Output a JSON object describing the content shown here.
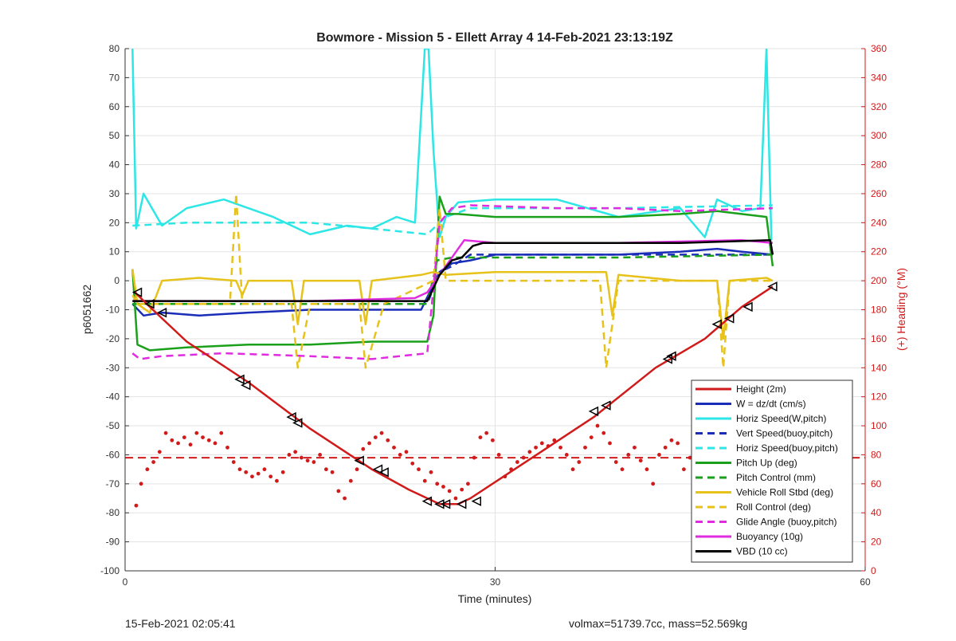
{
  "footer": {
    "left": "15-Feb-2021 02:05:41",
    "right": "volmax=51739.7cc, mass=52.569kg"
  },
  "chart_data": {
    "type": "line",
    "title": "Bowmore - Mission 5 - Ellett Array 4 14-Feb-2021 23:13:19Z",
    "xlabel": "Time (minutes)",
    "ylabel": "p6051662",
    "y2label": "(+) Heading (°M)",
    "xlim": [
      0,
      60
    ],
    "ylim": [
      -100,
      80
    ],
    "y2lim": [
      0,
      360
    ],
    "xticks": [
      0,
      30,
      60
    ],
    "yticks": [
      -100,
      -90,
      -80,
      -70,
      -60,
      -50,
      -40,
      -30,
      -20,
      -10,
      0,
      10,
      20,
      30,
      40,
      50,
      60,
      70,
      80
    ],
    "y2ticks": [
      0,
      20,
      40,
      60,
      80,
      100,
      120,
      140,
      160,
      180,
      200,
      220,
      240,
      260,
      280,
      300,
      320,
      340,
      360
    ],
    "grid": true,
    "legend_position": "bottom-right",
    "colors": {
      "red": "#d11a1a",
      "blue": "#1a2db8",
      "cyan": "#2de6e6",
      "green": "#1aa01a",
      "yellow": "#e6c21a",
      "magenta": "#e02be0",
      "black": "#000000",
      "y2axis": "#d11a1a"
    },
    "series": [
      {
        "name": "Height (2m)",
        "color": "red",
        "style": "solid",
        "x": [
          0.8,
          2,
          5,
          10,
          15,
          20,
          23,
          25.5,
          27,
          28,
          33,
          38,
          43,
          47,
          50,
          52.5
        ],
        "y": [
          -4,
          -9,
          -21,
          -35,
          -51,
          -65,
          -72,
          -77,
          -77,
          -75,
          -61,
          -47,
          -30,
          -20,
          -9,
          -2
        ]
      },
      {
        "name": "W = dz/dt (cm/s)",
        "color": "blue",
        "style": "solid",
        "x": [
          0.6,
          1.5,
          3,
          6,
          10,
          15,
          20,
          24,
          25.5,
          26.5,
          28,
          30,
          35,
          40,
          45,
          48,
          50,
          52.5
        ],
        "y": [
          -8,
          -12,
          -11,
          -12,
          -11,
          -10,
          -10,
          -10,
          3,
          6,
          7,
          9,
          9,
          9,
          10,
          11,
          10,
          9
        ]
      },
      {
        "name": "Horiz Speed(W,pitch)",
        "color": "cyan",
        "style": "solid",
        "x": [
          0.6,
          0.9,
          1.5,
          3,
          5,
          8,
          12,
          15,
          18,
          20,
          22,
          23.5,
          24.3,
          24.6,
          25,
          25.5,
          26,
          27,
          30,
          35,
          40,
          45,
          47,
          48,
          50,
          51.5,
          52,
          52.4
        ],
        "y": [
          80,
          18,
          30,
          19,
          25,
          28,
          22,
          16,
          19,
          18,
          22,
          20,
          80,
          80,
          45,
          15,
          22,
          27,
          28,
          28,
          22,
          25,
          15,
          28,
          24,
          25,
          80,
          14
        ]
      },
      {
        "name": "Vert Speed(buoy,pitch)",
        "color": "blue",
        "style": "dashed",
        "x": [
          0.6,
          24.5,
          25.5,
          26.5,
          28,
          40,
          52.5
        ],
        "y": [
          -8,
          -8,
          3,
          5,
          9,
          9,
          9
        ]
      },
      {
        "name": "Horiz Speed(buoy,pitch)",
        "color": "cyan",
        "style": "dashed",
        "x": [
          0.6,
          5,
          15,
          20,
          24.5,
          26,
          28,
          40,
          52.5
        ],
        "y": [
          19,
          20,
          20,
          18,
          16,
          22,
          25,
          25,
          26
        ]
      },
      {
        "name": "Pitch Up (deg)",
        "color": "green",
        "style": "solid",
        "x": [
          0.6,
          1,
          2,
          5,
          10,
          15,
          20,
          24.5,
          25,
          25.5,
          26,
          27,
          30,
          35,
          40,
          45,
          48,
          52,
          52.5
        ],
        "y": [
          4,
          -22,
          -24,
          -23,
          -22,
          -22,
          -21,
          -21,
          -12,
          29,
          23,
          23,
          22,
          22,
          22,
          23,
          24,
          22,
          5
        ]
      },
      {
        "name": "Pitch Control (mm)",
        "color": "green",
        "style": "dashed",
        "x": [
          0.6,
          24.5,
          25.3,
          26.5,
          40,
          52.5
        ],
        "y": [
          -8,
          -8,
          7,
          8,
          8,
          9
        ]
      },
      {
        "name": "Vehicle Roll Stbd (deg)",
        "color": "yellow",
        "style": "solid",
        "x": [
          0.6,
          1,
          2,
          3,
          6,
          9,
          9.5,
          10,
          13.5,
          14,
          14.5,
          19,
          19.5,
          20,
          24,
          25,
          26,
          30,
          35,
          39,
          39.5,
          40,
          45,
          48,
          48.5,
          49,
          52,
          52.5
        ],
        "y": [
          4,
          -8,
          -11,
          0,
          1,
          0,
          -5,
          0,
          0,
          -15,
          0,
          0,
          -15,
          0,
          2,
          3,
          2,
          3,
          3,
          3,
          -12,
          2,
          0,
          0,
          -20,
          0,
          1,
          0
        ]
      },
      {
        "name": "Roll Control (deg)",
        "color": "yellow",
        "style": "dashed",
        "x": [
          0.6,
          1,
          2,
          8.5,
          9,
          9.5,
          10,
          13.5,
          14,
          15,
          19,
          19.5,
          21,
          25,
          25.5,
          26,
          27,
          30,
          38.5,
          39,
          40,
          48,
          48.5,
          49,
          52.5
        ],
        "y": [
          -5,
          -8,
          -8,
          -8,
          30,
          -8,
          -8,
          -8,
          -30,
          -8,
          -8,
          -30,
          -8,
          0,
          25,
          0,
          0,
          0,
          0,
          -30,
          0,
          0,
          -30,
          0,
          0
        ]
      },
      {
        "name": "Glide Angle (buoy,pitch)",
        "color": "magenta",
        "style": "dashed",
        "x": [
          0.6,
          1.2,
          3,
          8,
          15,
          20,
          24.5,
          25.5,
          26.5,
          28,
          35,
          40,
          45,
          52.5
        ],
        "y": [
          -25,
          -27,
          -26,
          -25,
          -26,
          -27,
          -25,
          20,
          25,
          26,
          25,
          25,
          24,
          25
        ]
      },
      {
        "name": "Buoyancy (10g)",
        "color": "magenta",
        "style": "solid",
        "x": [
          0.6,
          5,
          15,
          23.5,
          24.5,
          25.5,
          27.5,
          30,
          40,
          50,
          52.5
        ],
        "y": [
          -7,
          -7,
          -7,
          -6,
          -4,
          2,
          14,
          13,
          13,
          14,
          13
        ]
      },
      {
        "name": "VBD (10 cc)",
        "color": "black",
        "style": "solid",
        "x": [
          0.6,
          10,
          20,
          24.5,
          25.5,
          26.5,
          27.3,
          28.2,
          29,
          35,
          45,
          52.3,
          52.5
        ],
        "y": [
          -7,
          -7,
          -7,
          -7,
          2,
          7,
          8,
          12,
          13,
          13,
          13,
          14,
          9
        ]
      }
    ],
    "heading_series": {
      "name": "Heading",
      "color": "red",
      "style": "dots",
      "axis": "y2",
      "x": [
        0.9,
        1.3,
        1.8,
        2.3,
        2.8,
        3.3,
        3.8,
        4.3,
        4.8,
        5.3,
        5.8,
        6.3,
        6.8,
        7.3,
        7.8,
        8.3,
        8.8,
        9.3,
        9.8,
        10.3,
        10.8,
        11.3,
        11.8,
        12.3,
        12.8,
        13.3,
        13.8,
        14.3,
        14.8,
        15.3,
        15.8,
        16.3,
        16.8,
        17.3,
        17.8,
        18.3,
        18.8,
        19.3,
        19.8,
        20.3,
        20.8,
        21.3,
        21.8,
        22.3,
        22.8,
        23.3,
        23.8,
        24.3,
        24.8,
        25.3,
        25.8,
        26.3,
        26.8,
        27.3,
        27.8,
        28.3,
        28.8,
        29.3,
        29.8,
        30.3,
        30.8,
        31.3,
        31.8,
        32.3,
        32.8,
        33.3,
        33.8,
        34.3,
        34.8,
        35.3,
        35.8,
        36.3,
        36.8,
        37.3,
        37.8,
        38.3,
        38.8,
        39.3,
        39.8,
        40.3,
        40.8,
        41.3,
        41.8,
        42.3,
        42.8,
        43.3,
        43.8,
        44.3,
        44.8,
        45.3,
        45.8,
        46.3,
        46.8,
        47.3,
        47.8,
        48.3,
        48.8,
        49.3,
        49.8,
        50.3,
        50.8,
        51.3,
        51.8
      ],
      "y": [
        45,
        60,
        70,
        75,
        82,
        95,
        90,
        88,
        92,
        87,
        95,
        92,
        90,
        88,
        95,
        85,
        75,
        70,
        68,
        65,
        67,
        70,
        65,
        62,
        68,
        80,
        82,
        78,
        76,
        75,
        80,
        70,
        68,
        55,
        50,
        62,
        70,
        84,
        88,
        92,
        95,
        90,
        85,
        80,
        82,
        74,
        70,
        62,
        68,
        60,
        58,
        55,
        50,
        56,
        60,
        78,
        92,
        95,
        90,
        80,
        65,
        70,
        75,
        78,
        82,
        85,
        88,
        86,
        90,
        85,
        80,
        70,
        75,
        85,
        92,
        100,
        95,
        88,
        75,
        70,
        80,
        85,
        76,
        70,
        60,
        80,
        85,
        90,
        88,
        70,
        78,
        74,
        60,
        55,
        62,
        58,
        70,
        65,
        68,
        72,
        78,
        80,
        85
      ]
    },
    "heading_mean": {
      "value": 78,
      "axis": "y2",
      "color": "red",
      "style": "dashed"
    },
    "markers": {
      "style": "triangle-left",
      "color": "black",
      "x": [
        1,
        2,
        3,
        9.3,
        9.8,
        13.5,
        14,
        19,
        20.5,
        21,
        24.5,
        25.5,
        26,
        27.3,
        28.5,
        38,
        39,
        44,
        44.3,
        48,
        49,
        50.5,
        52.5
      ],
      "y": [
        -4,
        -8,
        -11,
        -34,
        -36,
        -47,
        -49,
        -62,
        -65,
        -66,
        -76,
        -77,
        -77,
        -77,
        -76,
        -45,
        -43,
        -27,
        -26,
        -15,
        -13,
        -9,
        -2
      ]
    }
  }
}
